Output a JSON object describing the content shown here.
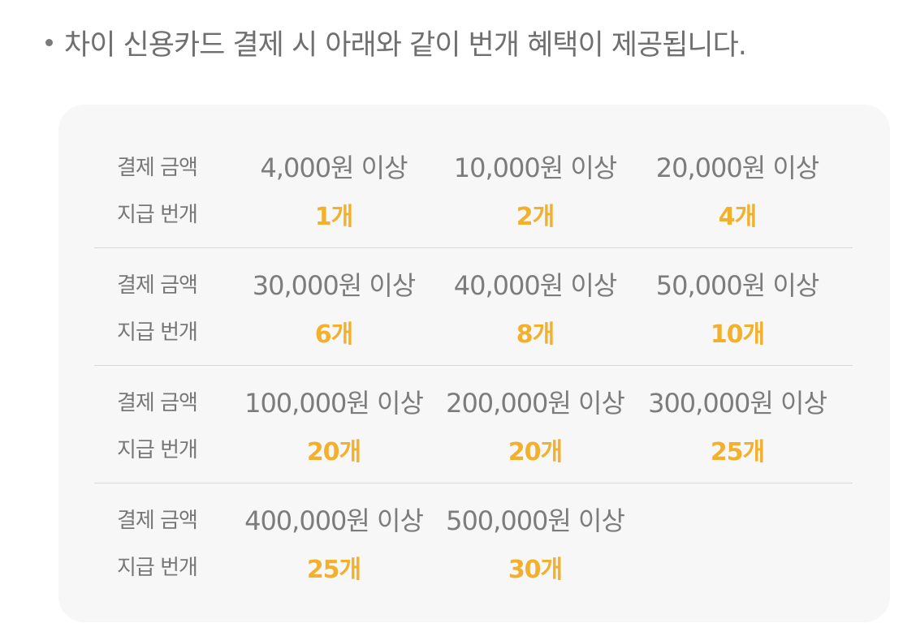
{
  "intro": {
    "text": "차이 신용카드 결제 시 아래와 같이 번개 혜택이 제공됩니다."
  },
  "table": {
    "amount_label": "결제 금액",
    "count_label": "지급 번개",
    "rows": [
      [
        {
          "amount": "4,000원 이상",
          "count": "1개"
        },
        {
          "amount": "10,000원 이상",
          "count": "2개"
        },
        {
          "amount": "20,000원 이상",
          "count": "4개"
        }
      ],
      [
        {
          "amount": "30,000원 이상",
          "count": "6개"
        },
        {
          "amount": "40,000원 이상",
          "count": "8개"
        },
        {
          "amount": "50,000원 이상",
          "count": "10개"
        }
      ],
      [
        {
          "amount": "100,000원 이상",
          "count": "20개"
        },
        {
          "amount": "200,000원 이상",
          "count": "20개"
        },
        {
          "amount": "300,000원 이상",
          "count": "25개"
        }
      ],
      [
        {
          "amount": "400,000원 이상",
          "count": "25개"
        },
        {
          "amount": "500,000원 이상",
          "count": "30개"
        }
      ]
    ]
  },
  "colors": {
    "accent": "#f2b02c",
    "text": "#7c7c7c",
    "card_bg": "#f7f7f7",
    "divider": "#d8d8d8"
  }
}
